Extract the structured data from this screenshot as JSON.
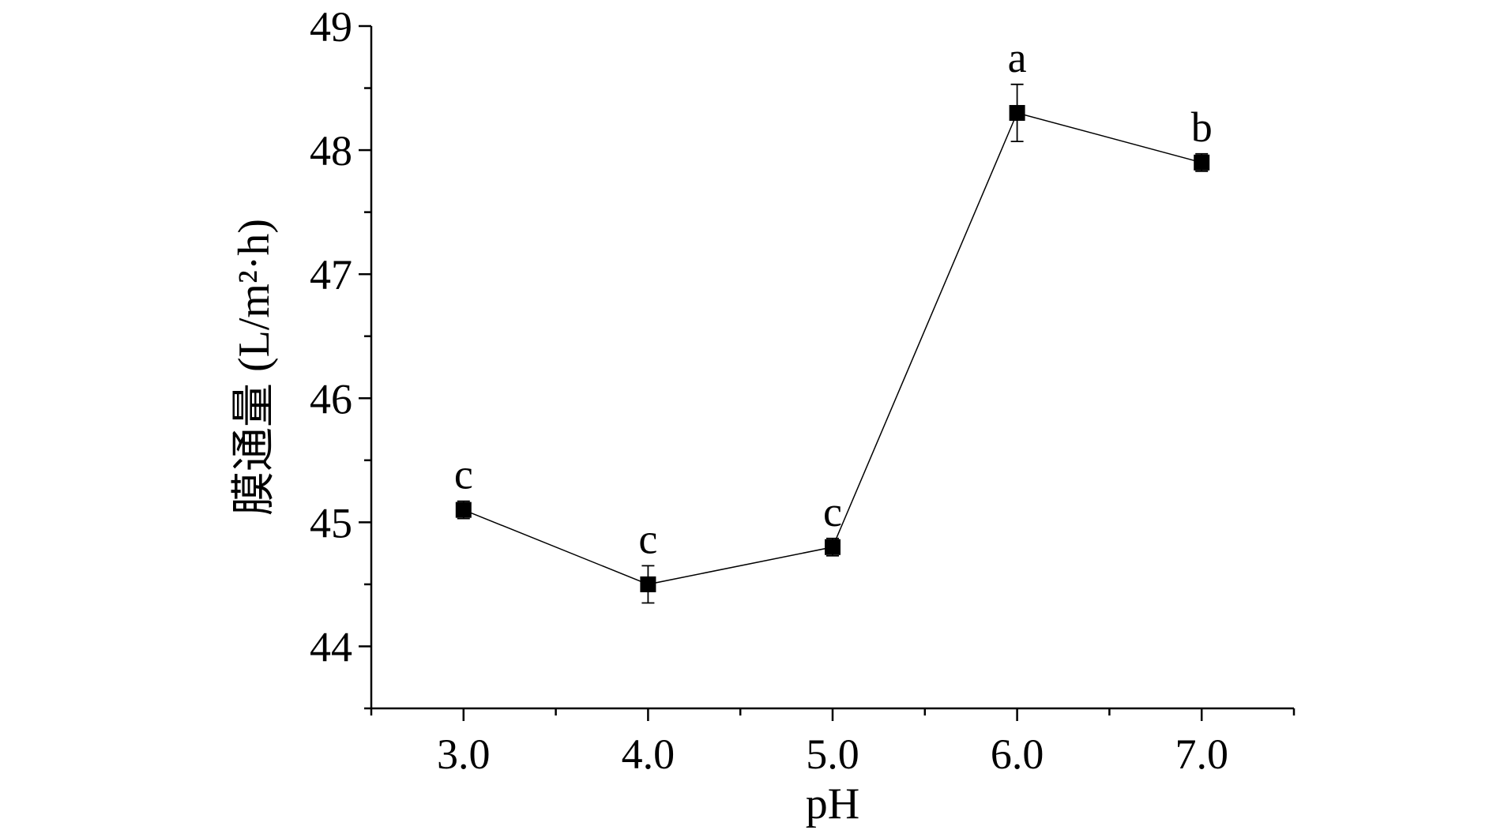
{
  "chart_data": {
    "type": "line",
    "xlabel": "pH",
    "ylabel": "膜通量 (L/m²·h)",
    "x": [
      3.0,
      4.0,
      5.0,
      6.0,
      7.0
    ],
    "x_tick_labels": [
      "3.0",
      "4.0",
      "5.0",
      "6.0",
      "7.0"
    ],
    "xlim": [
      2.5,
      7.5
    ],
    "ylim": [
      43.5,
      49
    ],
    "y_ticks": [
      44,
      45,
      46,
      47,
      48,
      49
    ],
    "y_tick_labels": [
      "44",
      "45",
      "46",
      "47",
      "48",
      "49"
    ],
    "grid": false,
    "series": [
      {
        "values": [
          45.1,
          44.5,
          44.8,
          48.3,
          47.9
        ],
        "errors": [
          0.07,
          0.15,
          0.07,
          0.23,
          0.07
        ],
        "significance": [
          "c",
          "c",
          "c",
          "a",
          "b"
        ],
        "marker": "square",
        "color": "#000000"
      }
    ]
  }
}
